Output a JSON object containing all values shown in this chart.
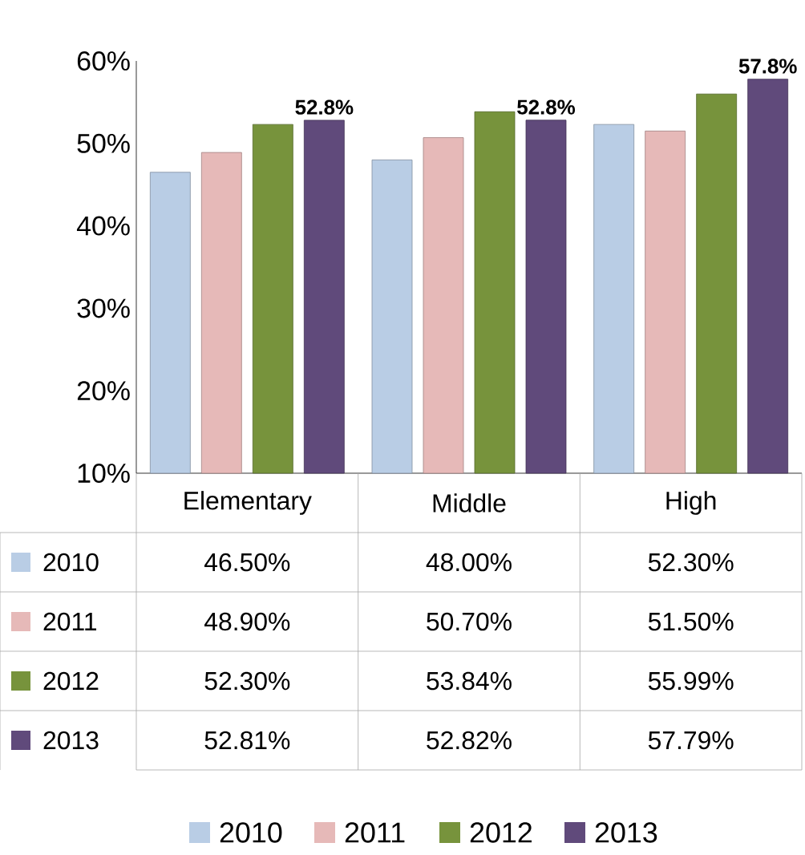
{
  "chart_data": {
    "type": "bar",
    "categories": [
      "Elementary",
      "Middle",
      "High"
    ],
    "series": [
      {
        "name": "2010",
        "color": "#b9cde5",
        "values": [
          46.5,
          48.0,
          52.3
        ],
        "value_labels": [
          "46.50%",
          "48.00%",
          "52.30%"
        ]
      },
      {
        "name": "2011",
        "color": "#e6b9b8",
        "values": [
          48.9,
          50.7,
          51.5
        ],
        "value_labels": [
          "48.90%",
          "50.70%",
          "51.50%"
        ]
      },
      {
        "name": "2012",
        "color": "#77933c",
        "values": [
          52.3,
          53.84,
          55.99
        ],
        "value_labels": [
          "52.30%",
          "53.84%",
          "55.99%"
        ]
      },
      {
        "name": "2013",
        "color": "#604a7b",
        "values": [
          52.81,
          52.82,
          57.79
        ],
        "value_labels": [
          "52.81%",
          "52.82%",
          "57.79%"
        ]
      }
    ],
    "annotations": [
      "52.8%",
      "52.8%",
      "57.8%"
    ],
    "ylim": [
      10,
      60
    ],
    "yticks": [
      {
        "value": 10,
        "label": "10%"
      },
      {
        "value": 20,
        "label": "20%"
      },
      {
        "value": 30,
        "label": "30%"
      },
      {
        "value": 40,
        "label": "40%"
      },
      {
        "value": 50,
        "label": "50%"
      },
      {
        "value": 60,
        "label": "60%"
      }
    ],
    "grid": false,
    "legend": "bottom"
  }
}
